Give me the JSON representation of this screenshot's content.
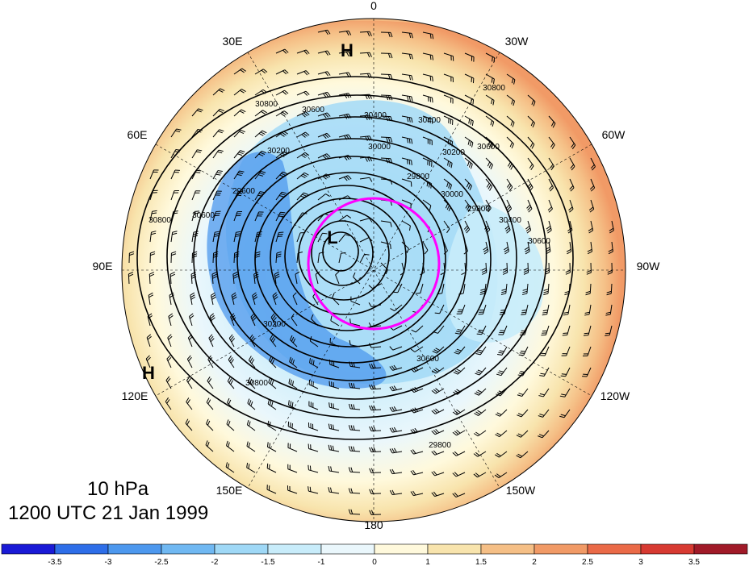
{
  "map": {
    "projection": "north-polar-stereographic",
    "longitude_labels": [
      "0",
      "30W",
      "60W",
      "90W",
      "120W",
      "150W",
      "180",
      "150E",
      "120E",
      "90E",
      "60E",
      "30E"
    ],
    "pressure_level": "10 hPa",
    "valid_time": "1200 UTC 21 Jan 1999",
    "centers": [
      {
        "type": "H",
        "label": "H"
      },
      {
        "type": "H",
        "label": "H"
      },
      {
        "type": "L",
        "label": "L"
      }
    ],
    "contour_labels": [
      "30800",
      "30600",
      "30400",
      "30200",
      "30000",
      "29800",
      "30400",
      "30200",
      "30000",
      "29800",
      "29600",
      "30400",
      "30600",
      "30600",
      "30800",
      "30800",
      "30600",
      "30200",
      "30800",
      "30600",
      "29800"
    ],
    "highlight_circle_color": "#ff00ff",
    "contour_color": "#000000"
  },
  "colorbar": {
    "tick_labels": [
      "-3.5",
      "-3",
      "-2.5",
      "-2",
      "-1.5",
      "-1",
      "0",
      "1",
      "1.5",
      "2",
      "2.5",
      "3",
      "3.5"
    ],
    "colors": [
      "#1a1ad6",
      "#2e6ee8",
      "#4d98ee",
      "#70b8f2",
      "#9fd8f6",
      "#c8ecfa",
      "#eaf7fc",
      "#fff9dc",
      "#f8e4ad",
      "#f5bf86",
      "#f19a66",
      "#ea6a48",
      "#d73a32",
      "#a01a28"
    ]
  }
}
